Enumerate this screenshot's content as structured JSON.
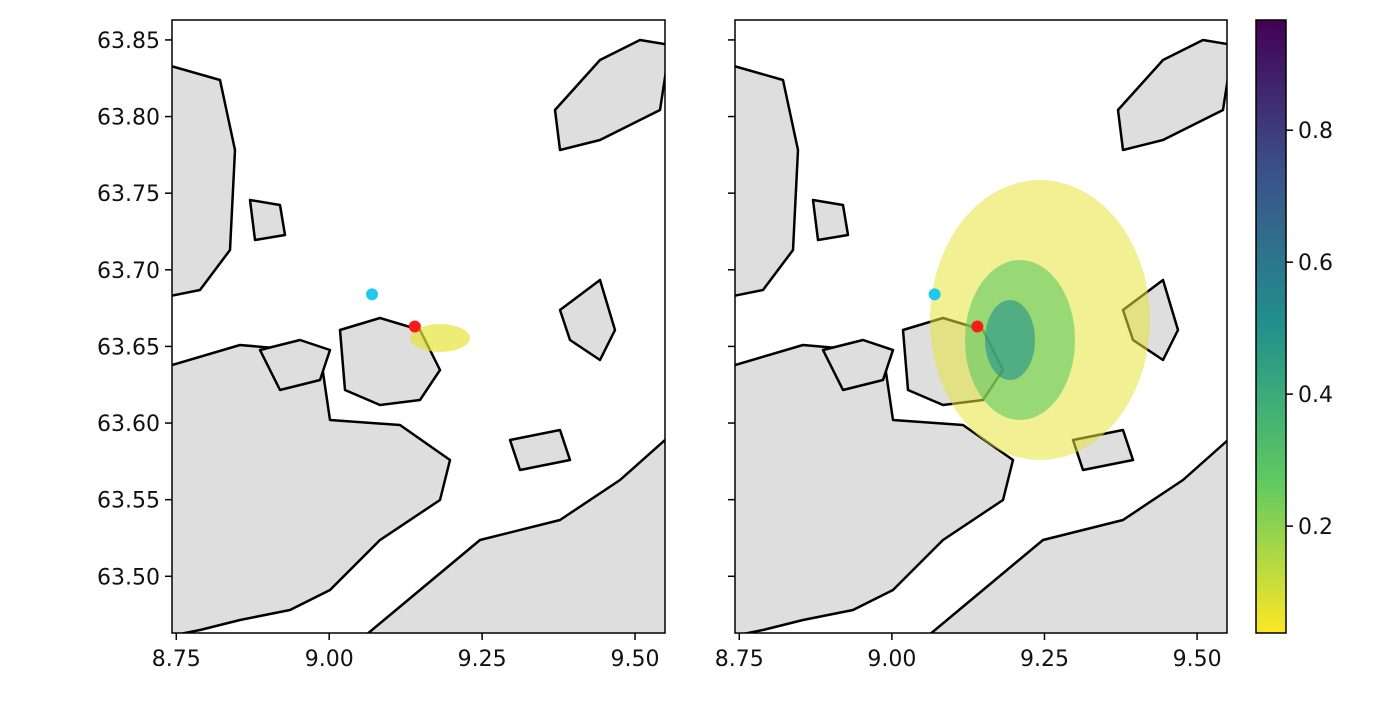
{
  "chart_data": [
    {
      "type": "map",
      "xlim": [
        8.743,
        9.549
      ],
      "ylim": [
        63.463,
        63.863
      ],
      "xticks": [
        8.75,
        {
          "value": 9.0,
          "label": "9.00"
        },
        9.25,
        {
          "value": 9.5,
          "label": "9.50"
        }
      ],
      "yticks": [
        63.85,
        {
          "value": 63.8,
          "label": "63.80"
        },
        63.75,
        {
          "value": 63.7,
          "label": "63.70"
        },
        63.65,
        {
          "value": 63.6,
          "label": "63.60"
        },
        63.55,
        {
          "value": 63.5,
          "label": "63.50"
        }
      ],
      "points": {
        "x": [
          9.07,
          9.14
        ],
        "y": [
          63.684,
          63.663
        ],
        "colors": [
          "#1ec8f0",
          "#ff1a1a"
        ]
      }
    },
    {
      "type": "map",
      "xlim": [
        8.743,
        9.549
      ],
      "ylim": [
        63.463,
        63.863
      ],
      "xticks": [
        8.75,
        {
          "value": 9.0,
          "label": "9.00"
        },
        9.25,
        {
          "value": 9.5,
          "label": "9.50"
        }
      ],
      "yticks": [
        63.85,
        63.8,
        63.75,
        63.7,
        63.65,
        63.6,
        63.55,
        63.5
      ],
      "points": {
        "x": [
          9.07,
          9.14
        ],
        "y": [
          63.684,
          63.663
        ],
        "colors": [
          "#1ec8f0",
          "#ff1a1a"
        ]
      },
      "colorbar": {
        "lim": [
          0.038,
          0.967
        ],
        "ticks": [
          0.2,
          0.4,
          0.6,
          0.8
        ],
        "colors": [
          "#fde725",
          "#5ec962",
          "#21918c",
          "#3b528b",
          "#440154"
        ]
      }
    }
  ]
}
